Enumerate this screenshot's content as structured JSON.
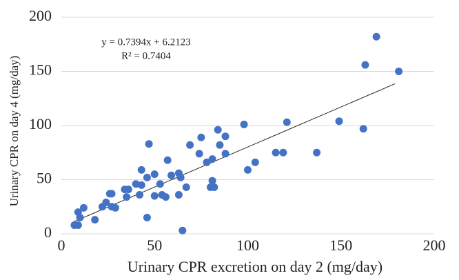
{
  "chart_data": {
    "type": "scatter",
    "x_label": "Urinary CPR excretion on day 2 (mg/day)",
    "y_label": "Urinary CPR on day 4 (mg/day)",
    "annotations": [
      "y = 0.7394x + 6.2123",
      "R² = 0.7404"
    ],
    "x": [
      7,
      9,
      9,
      10,
      12,
      18,
      22,
      24,
      26,
      27,
      27,
      29,
      34,
      36,
      35,
      40,
      43,
      42,
      43,
      46,
      46,
      47,
      50,
      50,
      53,
      54,
      56,
      57,
      59,
      63,
      63,
      64,
      65,
      67,
      69,
      74,
      75,
      78,
      80,
      81,
      81,
      82,
      84,
      85,
      88,
      88,
      98,
      100,
      104,
      115,
      119,
      121,
      137,
      149,
      162,
      163,
      169,
      181
    ],
    "values": [
      8,
      8,
      20,
      15,
      24,
      13,
      25,
      29,
      37,
      37,
      25,
      24,
      41,
      41,
      34,
      46,
      45,
      36,
      59,
      15,
      52,
      83,
      35,
      55,
      46,
      36,
      34,
      68,
      54,
      56,
      36,
      52,
      3,
      43,
      82,
      74,
      89,
      66,
      43,
      49,
      69,
      43,
      96,
      82,
      90,
      74,
      101,
      59,
      66,
      75,
      75,
      103,
      75,
      104,
      97,
      156,
      182,
      150
    ],
    "color": "#4472c4",
    "trendline": {
      "slope": 0.7394,
      "intercept": 6.2123,
      "x_range": [
        7,
        179
      ],
      "color": "#222222"
    },
    "xlim": [
      0,
      200
    ],
    "xticks": [
      0,
      50,
      100,
      150,
      200
    ],
    "ylim": [
      0,
      200
    ],
    "yticks": [
      0,
      50,
      100,
      150,
      200
    ],
    "grid": true
  }
}
